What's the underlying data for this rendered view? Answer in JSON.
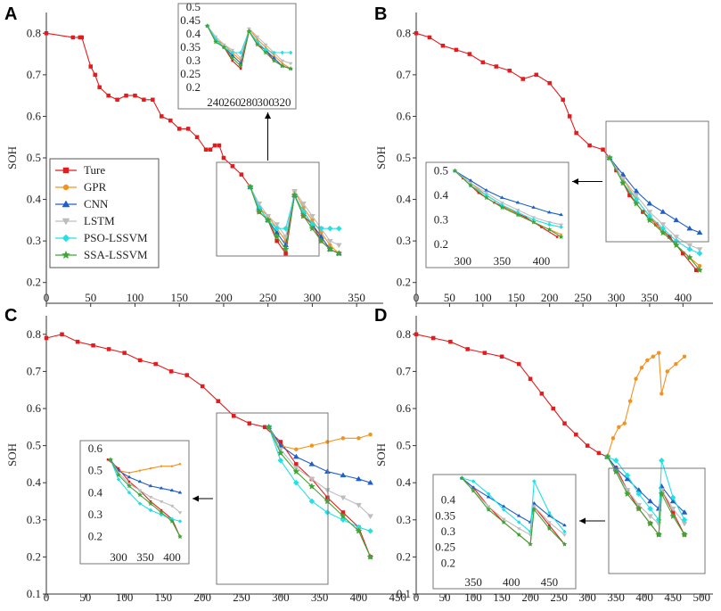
{
  "chart_data": [
    {
      "panel": "A",
      "type": "line",
      "ylabel": "SOH",
      "xlim": [
        0,
        380
      ],
      "ylim": [
        0.15,
        0.85
      ],
      "xticks": [
        0,
        50,
        100,
        150,
        200,
        250,
        300,
        350
      ],
      "yticks": [
        0.2,
        0.3,
        0.4,
        0.5,
        0.6,
        0.7,
        0.8
      ],
      "arrow": "up",
      "legend": [
        "Ture",
        "GPR",
        "CNN",
        "LSTM",
        "PSO-LSSVM",
        "SSA-LSSVM"
      ],
      "series": [
        {
          "name": "Ture",
          "x": [
            0,
            30,
            38,
            40,
            50,
            55,
            60,
            70,
            80,
            90,
            100,
            110,
            120,
            130,
            140,
            150,
            160,
            170,
            180,
            185,
            190,
            195,
            200,
            210,
            220,
            230,
            240,
            250,
            260,
            270,
            280,
            290,
            300,
            310,
            320,
            330
          ],
          "y": [
            0.8,
            0.79,
            0.79,
            0.79,
            0.72,
            0.7,
            0.67,
            0.65,
            0.64,
            0.65,
            0.65,
            0.64,
            0.64,
            0.6,
            0.59,
            0.57,
            0.57,
            0.55,
            0.52,
            0.52,
            0.53,
            0.53,
            0.5,
            0.48,
            0.46,
            0.43,
            0.37,
            0.35,
            0.3,
            0.27,
            0.41,
            0.36,
            0.34,
            0.3,
            0.28,
            0.27
          ]
        },
        {
          "name": "GPR",
          "x": [
            230,
            240,
            250,
            260,
            270,
            280,
            290,
            300,
            310,
            320,
            330
          ],
          "y": [
            0.43,
            0.38,
            0.36,
            0.33,
            0.3,
            0.42,
            0.38,
            0.35,
            0.32,
            0.29,
            0.27
          ]
        },
        {
          "name": "CNN",
          "x": [
            230,
            240,
            250,
            260,
            270,
            280,
            290,
            300,
            310,
            320,
            330
          ],
          "y": [
            0.43,
            0.38,
            0.35,
            0.32,
            0.29,
            0.41,
            0.37,
            0.34,
            0.31,
            0.28,
            0.27
          ]
        },
        {
          "name": "LSTM",
          "x": [
            230,
            240,
            250,
            260,
            270,
            280,
            290,
            300,
            310,
            320,
            330
          ],
          "y": [
            0.43,
            0.39,
            0.36,
            0.34,
            0.31,
            0.42,
            0.39,
            0.36,
            0.33,
            0.3,
            0.29
          ]
        },
        {
          "name": "PSO-LSSVM",
          "x": [
            230,
            240,
            250,
            260,
            270,
            280,
            290,
            300,
            310,
            320,
            330
          ],
          "y": [
            0.43,
            0.38,
            0.35,
            0.33,
            0.33,
            0.41,
            0.37,
            0.34,
            0.33,
            0.33,
            0.33
          ]
        },
        {
          "name": "SSA-LSSVM",
          "x": [
            230,
            240,
            250,
            260,
            270,
            280,
            290,
            300,
            310,
            320,
            330
          ],
          "y": [
            0.43,
            0.37,
            0.35,
            0.31,
            0.28,
            0.41,
            0.36,
            0.33,
            0.3,
            0.28,
            0.27
          ]
        }
      ],
      "inset": {
        "xlim": [
          225,
          332
        ],
        "ylim": [
          0.18,
          0.5
        ],
        "xticks": [
          240,
          260,
          280,
          300,
          320
        ],
        "yticks": [
          0.2,
          0.25,
          0.3,
          0.35,
          0.4,
          0.45,
          0.5
        ]
      }
    },
    {
      "panel": "B",
      "type": "line",
      "ylabel": "SOH",
      "xlim": [
        0,
        445
      ],
      "ylim": [
        0.15,
        0.85
      ],
      "xticks": [
        0,
        50,
        100,
        150,
        200,
        250,
        300,
        350,
        400
      ],
      "yticks": [
        0.2,
        0.3,
        0.4,
        0.5,
        0.6,
        0.7,
        0.8
      ],
      "arrow": "left",
      "series": [
        {
          "name": "Ture",
          "x": [
            0,
            20,
            40,
            60,
            80,
            100,
            120,
            140,
            160,
            180,
            200,
            220,
            230,
            240,
            260,
            280,
            290,
            300,
            320,
            340,
            360,
            380,
            400,
            420
          ],
          "y": [
            0.8,
            0.79,
            0.77,
            0.76,
            0.75,
            0.73,
            0.72,
            0.71,
            0.69,
            0.7,
            0.68,
            0.64,
            0.6,
            0.56,
            0.53,
            0.52,
            0.5,
            0.47,
            0.41,
            0.37,
            0.34,
            0.31,
            0.27,
            0.23
          ]
        },
        {
          "name": "GPR",
          "x": [
            290,
            310,
            330,
            350,
            370,
            390,
            410,
            425
          ],
          "y": [
            0.5,
            0.45,
            0.4,
            0.36,
            0.32,
            0.29,
            0.26,
            0.24
          ]
        },
        {
          "name": "CNN",
          "x": [
            290,
            310,
            330,
            350,
            370,
            390,
            410,
            425
          ],
          "y": [
            0.5,
            0.46,
            0.42,
            0.39,
            0.37,
            0.35,
            0.33,
            0.32
          ]
        },
        {
          "name": "LSTM",
          "x": [
            290,
            310,
            330,
            350,
            370,
            390,
            410,
            425
          ],
          "y": [
            0.5,
            0.45,
            0.41,
            0.37,
            0.34,
            0.31,
            0.29,
            0.28
          ]
        },
        {
          "name": "PSO-LSSVM",
          "x": [
            290,
            310,
            330,
            350,
            370,
            390,
            410,
            425
          ],
          "y": [
            0.5,
            0.44,
            0.4,
            0.36,
            0.33,
            0.3,
            0.28,
            0.27
          ]
        },
        {
          "name": "SSA-LSSVM",
          "x": [
            290,
            310,
            330,
            350,
            370,
            390,
            410,
            425
          ],
          "y": [
            0.5,
            0.44,
            0.39,
            0.35,
            0.32,
            0.29,
            0.26,
            0.23
          ]
        }
      ],
      "inset": {
        "xlim": [
          285,
          430
        ],
        "ylim": [
          0.17,
          0.52
        ],
        "xticks": [
          300,
          350,
          400
        ],
        "yticks": [
          0.2,
          0.3,
          0.4,
          0.5
        ]
      }
    },
    {
      "panel": "C",
      "type": "line",
      "ylabel": "SOH",
      "xlim": [
        0,
        460
      ],
      "ylim": [
        0.1,
        0.85
      ],
      "xticks": [
        0,
        50,
        100,
        150,
        200,
        250,
        300,
        350,
        400,
        450
      ],
      "yticks": [
        0.1,
        0.2,
        0.3,
        0.4,
        0.5,
        0.6,
        0.7,
        0.8
      ],
      "arrow": "left",
      "series": [
        {
          "name": "Ture",
          "x": [
            0,
            20,
            40,
            60,
            80,
            100,
            120,
            140,
            160,
            180,
            200,
            220,
            240,
            260,
            280,
            300,
            320,
            340,
            360,
            380,
            400,
            415
          ],
          "y": [
            0.79,
            0.8,
            0.78,
            0.77,
            0.76,
            0.75,
            0.73,
            0.72,
            0.7,
            0.69,
            0.66,
            0.62,
            0.58,
            0.56,
            0.55,
            0.51,
            0.45,
            0.41,
            0.36,
            0.32,
            0.28,
            0.2
          ]
        },
        {
          "name": "GPR",
          "x": [
            285,
            300,
            320,
            340,
            360,
            380,
            400,
            415
          ],
          "y": [
            0.55,
            0.5,
            0.49,
            0.5,
            0.51,
            0.52,
            0.52,
            0.53
          ]
        },
        {
          "name": "CNN",
          "x": [
            285,
            300,
            320,
            340,
            360,
            380,
            400,
            415
          ],
          "y": [
            0.55,
            0.5,
            0.47,
            0.45,
            0.43,
            0.42,
            0.41,
            0.4
          ]
        },
        {
          "name": "LSTM",
          "x": [
            285,
            300,
            320,
            340,
            360,
            380,
            400,
            415
          ],
          "y": [
            0.55,
            0.49,
            0.44,
            0.41,
            0.38,
            0.36,
            0.34,
            0.31
          ]
        },
        {
          "name": "PSO-LSSVM",
          "x": [
            285,
            300,
            320,
            340,
            360,
            380,
            400,
            415
          ],
          "y": [
            0.55,
            0.46,
            0.4,
            0.35,
            0.32,
            0.3,
            0.28,
            0.27
          ]
        },
        {
          "name": "SSA-LSSVM",
          "x": [
            285,
            300,
            320,
            340,
            360,
            380,
            400,
            415
          ],
          "y": [
            0.55,
            0.48,
            0.43,
            0.39,
            0.35,
            0.31,
            0.27,
            0.2
          ]
        }
      ],
      "inset": {
        "xlim": [
          275,
          425
        ],
        "ylim": [
          0.15,
          0.62
        ],
        "xticks": [
          300,
          350,
          400
        ],
        "yticks": [
          0.2,
          0.3,
          0.4,
          0.5,
          0.6
        ]
      }
    },
    {
      "panel": "D",
      "type": "line",
      "ylabel": "SOH",
      "xlim": [
        0,
        520
      ],
      "ylim": [
        0.1,
        0.85
      ],
      "xticks": [
        0,
        50,
        100,
        150,
        200,
        250,
        300,
        350,
        400,
        450,
        500
      ],
      "yticks": [
        0.1,
        0.2,
        0.3,
        0.4,
        0.5,
        0.6,
        0.7,
        0.8
      ],
      "arrow": "left",
      "series": [
        {
          "name": "Ture",
          "x": [
            0,
            30,
            60,
            90,
            120,
            150,
            180,
            200,
            220,
            240,
            260,
            280,
            300,
            320,
            335,
            350,
            370,
            390,
            410,
            425,
            430,
            450,
            470
          ],
          "y": [
            0.8,
            0.79,
            0.78,
            0.76,
            0.75,
            0.74,
            0.72,
            0.68,
            0.64,
            0.6,
            0.56,
            0.53,
            0.5,
            0.48,
            0.47,
            0.44,
            0.38,
            0.33,
            0.29,
            0.26,
            0.38,
            0.32,
            0.26
          ]
        },
        {
          "name": "GPR",
          "x": [
            335,
            345,
            355,
            365,
            375,
            385,
            395,
            405,
            415,
            425,
            430,
            440,
            455,
            470
          ],
          "y": [
            0.47,
            0.52,
            0.55,
            0.56,
            0.62,
            0.68,
            0.71,
            0.73,
            0.74,
            0.75,
            0.64,
            0.7,
            0.72,
            0.74
          ]
        },
        {
          "name": "CNN",
          "x": [
            335,
            350,
            370,
            390,
            410,
            425,
            430,
            450,
            470
          ],
          "y": [
            0.47,
            0.44,
            0.41,
            0.38,
            0.35,
            0.33,
            0.39,
            0.35,
            0.32
          ]
        },
        {
          "name": "LSTM",
          "x": [
            335,
            350,
            370,
            390,
            410,
            425,
            430,
            450,
            470
          ],
          "y": [
            0.47,
            0.43,
            0.38,
            0.34,
            0.31,
            0.29,
            0.38,
            0.33,
            0.29
          ]
        },
        {
          "name": "PSO-LSSVM",
          "x": [
            335,
            350,
            370,
            390,
            410,
            425,
            430,
            450,
            470
          ],
          "y": [
            0.47,
            0.46,
            0.42,
            0.37,
            0.33,
            0.3,
            0.46,
            0.36,
            0.3
          ]
        },
        {
          "name": "SSA-LSSVM",
          "x": [
            335,
            350,
            370,
            390,
            410,
            425,
            430,
            450,
            470
          ],
          "y": [
            0.47,
            0.43,
            0.37,
            0.33,
            0.29,
            0.26,
            0.37,
            0.31,
            0.26
          ]
        }
      ],
      "inset": {
        "xlim": [
          330,
          480
        ],
        "ylim": [
          0.17,
          0.47
        ],
        "xticks": [
          350,
          400,
          450
        ],
        "yticks": [
          0.2,
          0.25,
          0.3,
          0.35,
          0.4
        ]
      }
    }
  ],
  "colors": {
    "Ture": "#e41a1c",
    "GPR": "#f39221",
    "CNN": "#1f5fc8",
    "LSTM": "#bdbdbd",
    "PSO-LSSVM": "#22e0e8",
    "SSA-LSSVM": "#3fa535"
  },
  "markers": {
    "Ture": "square",
    "GPR": "circle",
    "CNN": "triangle-up",
    "LSTM": "triangle-down",
    "PSO-LSSVM": "diamond",
    "SSA-LSSVM": "star"
  }
}
